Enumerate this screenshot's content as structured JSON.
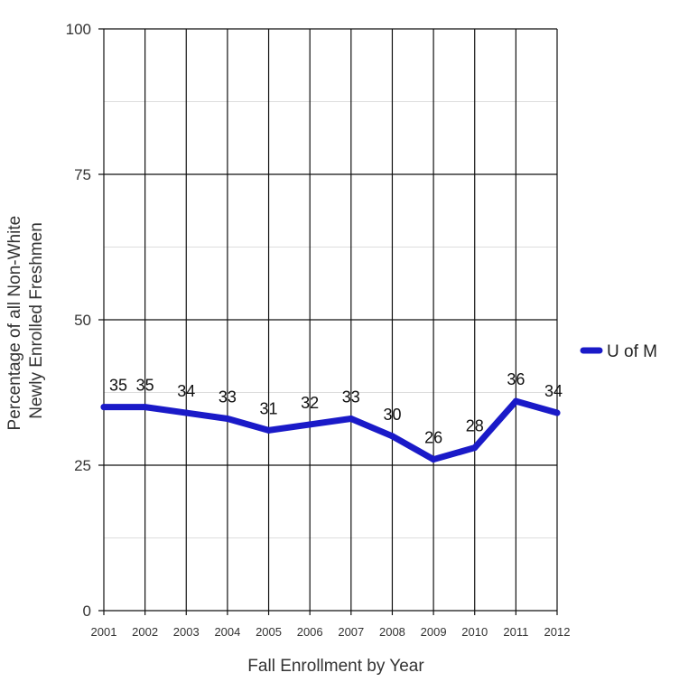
{
  "chart_data": {
    "type": "line",
    "categories": [
      "2001",
      "2002",
      "2003",
      "2004",
      "2005",
      "2006",
      "2007",
      "2008",
      "2009",
      "2010",
      "2011",
      "2012"
    ],
    "series": [
      {
        "name": "U of M",
        "values": [
          35,
          35,
          34,
          33,
          31,
          32,
          33,
          30,
          26,
          28,
          36,
          34
        ],
        "color": "#1a1ac8"
      }
    ],
    "xlabel": "Fall Enrollment by Year",
    "ylabel_lines": [
      "Percentage of all Non-White",
      "Newly Enrolled Freshmen"
    ],
    "ylim": [
      0,
      100
    ],
    "yticks": [
      0,
      25,
      50,
      75,
      100
    ],
    "minor_gridlines": [
      12.5,
      37.5,
      62.5,
      87.5
    ],
    "grid": true,
    "legend_position": "right"
  }
}
